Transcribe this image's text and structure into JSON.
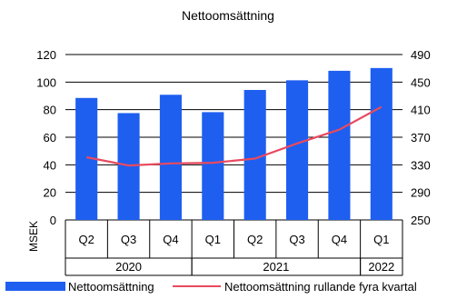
{
  "chart_data": {
    "type": "bar",
    "title": "Nettoomsättning",
    "ylabel": "MSEK",
    "categories": [
      "Q2",
      "Q3",
      "Q4",
      "Q1",
      "Q2",
      "Q3",
      "Q4",
      "Q1"
    ],
    "groups": [
      {
        "label": "2020",
        "span": 3
      },
      {
        "label": "2021",
        "span": 4
      },
      {
        "label": "2022",
        "span": 1
      }
    ],
    "yticks_left": [
      "0",
      "20",
      "40",
      "60",
      "80",
      "100",
      "120"
    ],
    "yticks_right": [
      "250",
      "290",
      "330",
      "370",
      "410",
      "450",
      "490"
    ],
    "ylim": [
      0,
      120
    ],
    "ylim_right": [
      250,
      490
    ],
    "grid": "horizontal",
    "legend_position": "bottom",
    "series": [
      {
        "name": "Nettoomsättning",
        "type": "bar",
        "axis": "left",
        "color": "#1e5ff0",
        "values": [
          88.5,
          77.5,
          90.8,
          78.2,
          94.3,
          101.3,
          108.2,
          110.2
        ]
      },
      {
        "name": "Nettoomsättning rullande fyra kvartal",
        "type": "line",
        "axis": "right",
        "color": "#e84a5f",
        "values": [
          341,
          329,
          332,
          333,
          339,
          361,
          381,
          414
        ]
      }
    ]
  }
}
